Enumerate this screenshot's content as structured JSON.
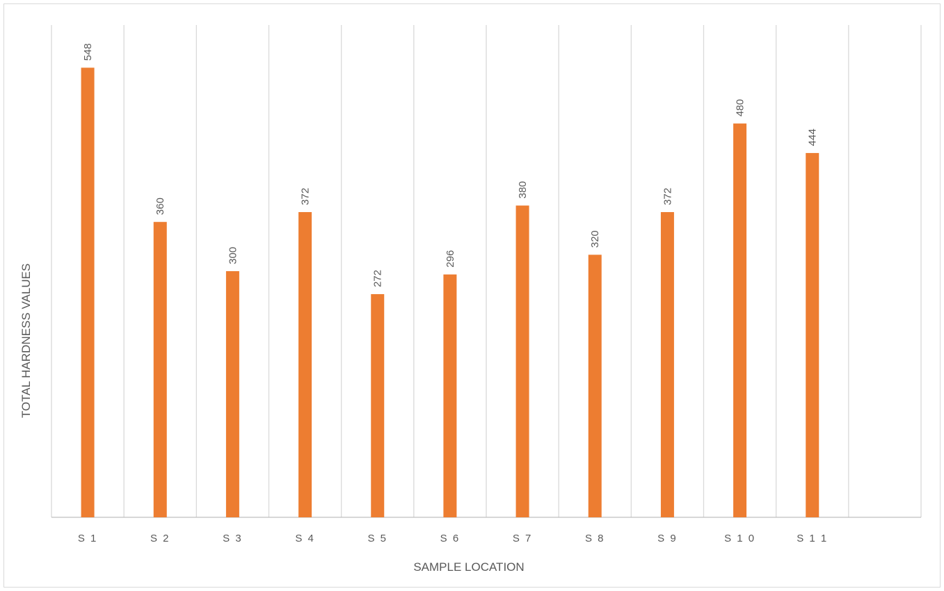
{
  "chart_data": {
    "type": "bar",
    "title": "",
    "xlabel": "SAMPLE LOCATION",
    "ylabel": "TOTAL HARDNESS VALUES",
    "categories": [
      "S1",
      "S2",
      "S3",
      "S4",
      "S5",
      "S6",
      "S7",
      "S8",
      "S9",
      "S10",
      "S11"
    ],
    "tick_labels": [
      "S 1",
      "S 2",
      "S 3",
      "S 4",
      "S 5",
      "S 6",
      "S 7",
      "S 8",
      "S 9",
      "S 1 0",
      "S 1 1"
    ],
    "values": [
      548,
      360,
      300,
      372,
      272,
      296,
      380,
      320,
      372,
      480,
      444
    ],
    "data_labels": [
      "548",
      "360",
      "300",
      "372",
      "272",
      "296",
      "380",
      "320",
      "372",
      "480",
      "444"
    ],
    "ylim": [
      0,
      600
    ],
    "grid": "vertical",
    "legend": "none",
    "bar_color": "#ed7d31"
  }
}
